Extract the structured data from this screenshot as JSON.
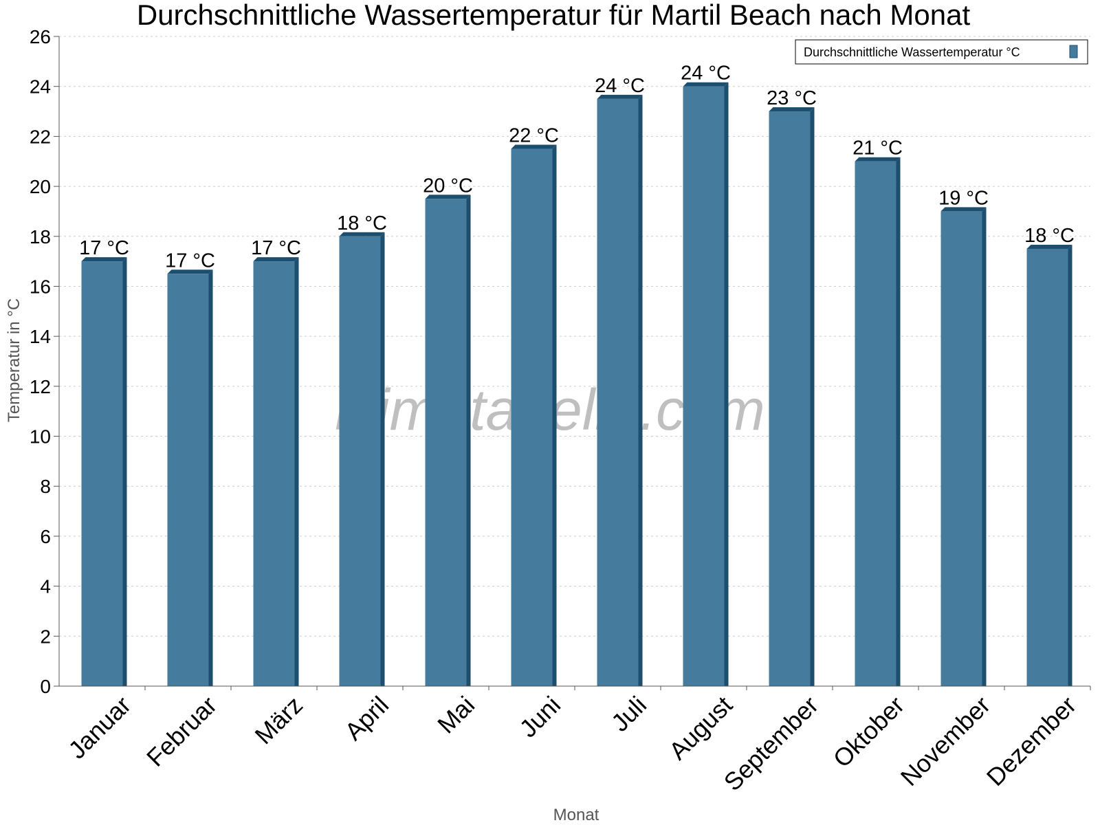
{
  "chart_data": {
    "type": "bar",
    "title": "Durchschnittliche Wassertemperatur für Martil Beach nach Monat",
    "xlabel": "Monat",
    "ylabel": "Temperatur in °C",
    "ylim": [
      0,
      26
    ],
    "yticks": [
      0,
      2,
      4,
      6,
      8,
      10,
      12,
      14,
      16,
      18,
      20,
      22,
      24,
      26
    ],
    "grid": true,
    "legend_position": "top-right",
    "categories": [
      "Januar",
      "Februar",
      "März",
      "April",
      "Mai",
      "Juni",
      "Juli",
      "August",
      "September",
      "Oktober",
      "November",
      "Dezember"
    ],
    "series": [
      {
        "name": "Durchschnittliche Wassertemperatur °C",
        "values": [
          17.0,
          16.5,
          17.0,
          18.0,
          19.5,
          21.5,
          23.5,
          24.0,
          23.0,
          21.0,
          19.0,
          17.5
        ],
        "labels": [
          "17 °C",
          "17 °C",
          "17 °C",
          "18 °C",
          "20 °C",
          "22 °C",
          "24 °C",
          "24 °C",
          "23 °C",
          "21 °C",
          "19 °C",
          "18 °C"
        ],
        "color": "#457b9d"
      }
    ],
    "colors": {
      "bar": "#457b9d",
      "bar_dark": "#1d4e6e",
      "grid": "#cccccc",
      "axis": "#555555"
    }
  },
  "watermark": "klimatabelle.com"
}
